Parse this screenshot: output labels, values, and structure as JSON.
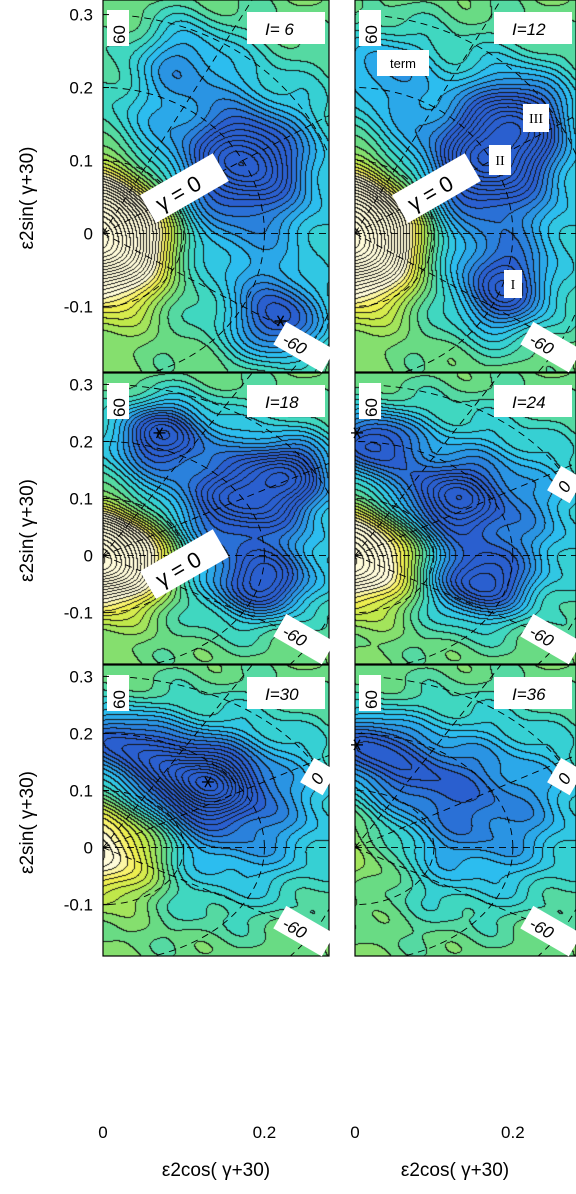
{
  "chart_data": {
    "type": "heatmap",
    "description_axes": {
      "xlabel": "ε2cos( γ+30)",
      "ylabel": "ε2sin( γ+30)",
      "xlim": [
        0,
        0.28
      ],
      "ylim": [
        -0.19,
        0.32
      ],
      "xticks": [
        "0",
        "0.2"
      ],
      "yticks": [
        "0.3",
        "0.2",
        "0.1",
        "0",
        "-0.1"
      ]
    },
    "colormap": [
      "#fffbd9",
      "#f6ef50",
      "#bde84a",
      "#6fdc7c",
      "#3ad6c8",
      "#2cc0f0",
      "#2a8be0",
      "#2a5fcf"
    ],
    "panels": [
      {
        "label": "I= 6",
        "gamma_labels": [
          "60",
          "γ = 0",
          "-60"
        ],
        "minimum": {
          "x": 0.22,
          "y": -0.12
        },
        "wells": [
          {
            "x": 0.22,
            "y": -0.12,
            "depth": 1.0
          },
          {
            "x": 0.18,
            "y": 0.1,
            "depth": 0.85
          },
          {
            "x": 0.1,
            "y": 0.24,
            "depth": 0.45
          }
        ],
        "origin_hill": 1.0
      },
      {
        "label": "I=12",
        "gamma_labels": [
          "60",
          "γ = 0",
          "-60"
        ],
        "annotations": [
          "term",
          "III",
          "II",
          "I"
        ],
        "wells": [
          {
            "x": 0.19,
            "y": -0.08,
            "depth": 0.9
          },
          {
            "x": 0.17,
            "y": 0.1,
            "depth": 0.8
          },
          {
            "x": 0.21,
            "y": 0.16,
            "depth": 0.85
          },
          {
            "x": 0.03,
            "y": 0.23,
            "depth": 0.5
          }
        ],
        "origin_hill": 1.0
      },
      {
        "label": "I=18",
        "gamma_labels": [
          "60",
          "γ = 0",
          "-60"
        ],
        "minimum": {
          "x": 0.07,
          "y": 0.215
        },
        "wells": [
          {
            "x": 0.07,
            "y": 0.215,
            "depth": 1.0
          },
          {
            "x": 0.2,
            "y": -0.05,
            "depth": 0.9
          },
          {
            "x": 0.23,
            "y": 0.15,
            "depth": 0.8
          },
          {
            "x": 0.18,
            "y": 0.1,
            "depth": 0.6
          }
        ],
        "origin_hill": 0.9
      },
      {
        "label": "I=24",
        "gamma_labels": [
          "60",
          "0",
          "-60"
        ],
        "minimum": {
          "x": 0.0,
          "y": 0.215
        },
        "wells": [
          {
            "x": 0.02,
            "y": 0.2,
            "depth": 1.0
          },
          {
            "x": 0.16,
            "y": -0.05,
            "depth": 0.9
          },
          {
            "x": 0.12,
            "y": 0.1,
            "depth": 0.7
          }
        ],
        "origin_hill": 0.7
      },
      {
        "label": "I=30",
        "gamma_labels": [
          "60",
          "0",
          "-60"
        ],
        "minimum": {
          "x": 0.13,
          "y": 0.115
        },
        "wells": [
          {
            "x": 0.13,
            "y": 0.11,
            "depth": 1.0
          },
          {
            "x": 0.01,
            "y": 0.19,
            "depth": 0.8
          },
          {
            "x": 0.08,
            "y": 0.15,
            "depth": 0.5
          }
        ],
        "origin_hill": 0.5
      },
      {
        "label": "I=36",
        "gamma_labels": [
          "60",
          "0",
          "-60"
        ],
        "minimum": {
          "x": 0.0,
          "y": 0.18
        },
        "wells": [
          {
            "x": 0.01,
            "y": 0.18,
            "depth": 0.9
          },
          {
            "x": 0.08,
            "y": 0.13,
            "depth": 0.35
          }
        ],
        "origin_hill": 0.2
      }
    ]
  }
}
